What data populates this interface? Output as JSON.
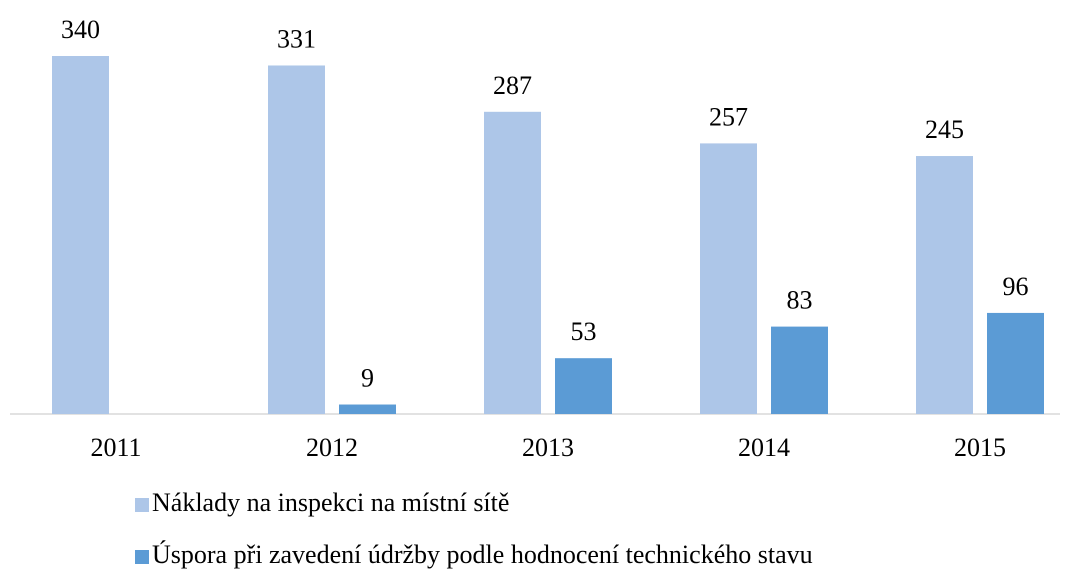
{
  "chart_data": {
    "type": "bar",
    "categories": [
      "2011",
      "2012",
      "2013",
      "2014",
      "2015"
    ],
    "series": [
      {
        "name": "Náklady na inspekci na místní sítě",
        "color": "#adc6e8",
        "values": [
          340,
          331,
          287,
          257,
          245
        ]
      },
      {
        "name": "Úspora při zavedení údržby podle hodnocení technického stavu",
        "color": "#5b9bd5",
        "values": [
          null,
          9,
          53,
          83,
          96
        ]
      }
    ],
    "legend": "bottom"
  }
}
